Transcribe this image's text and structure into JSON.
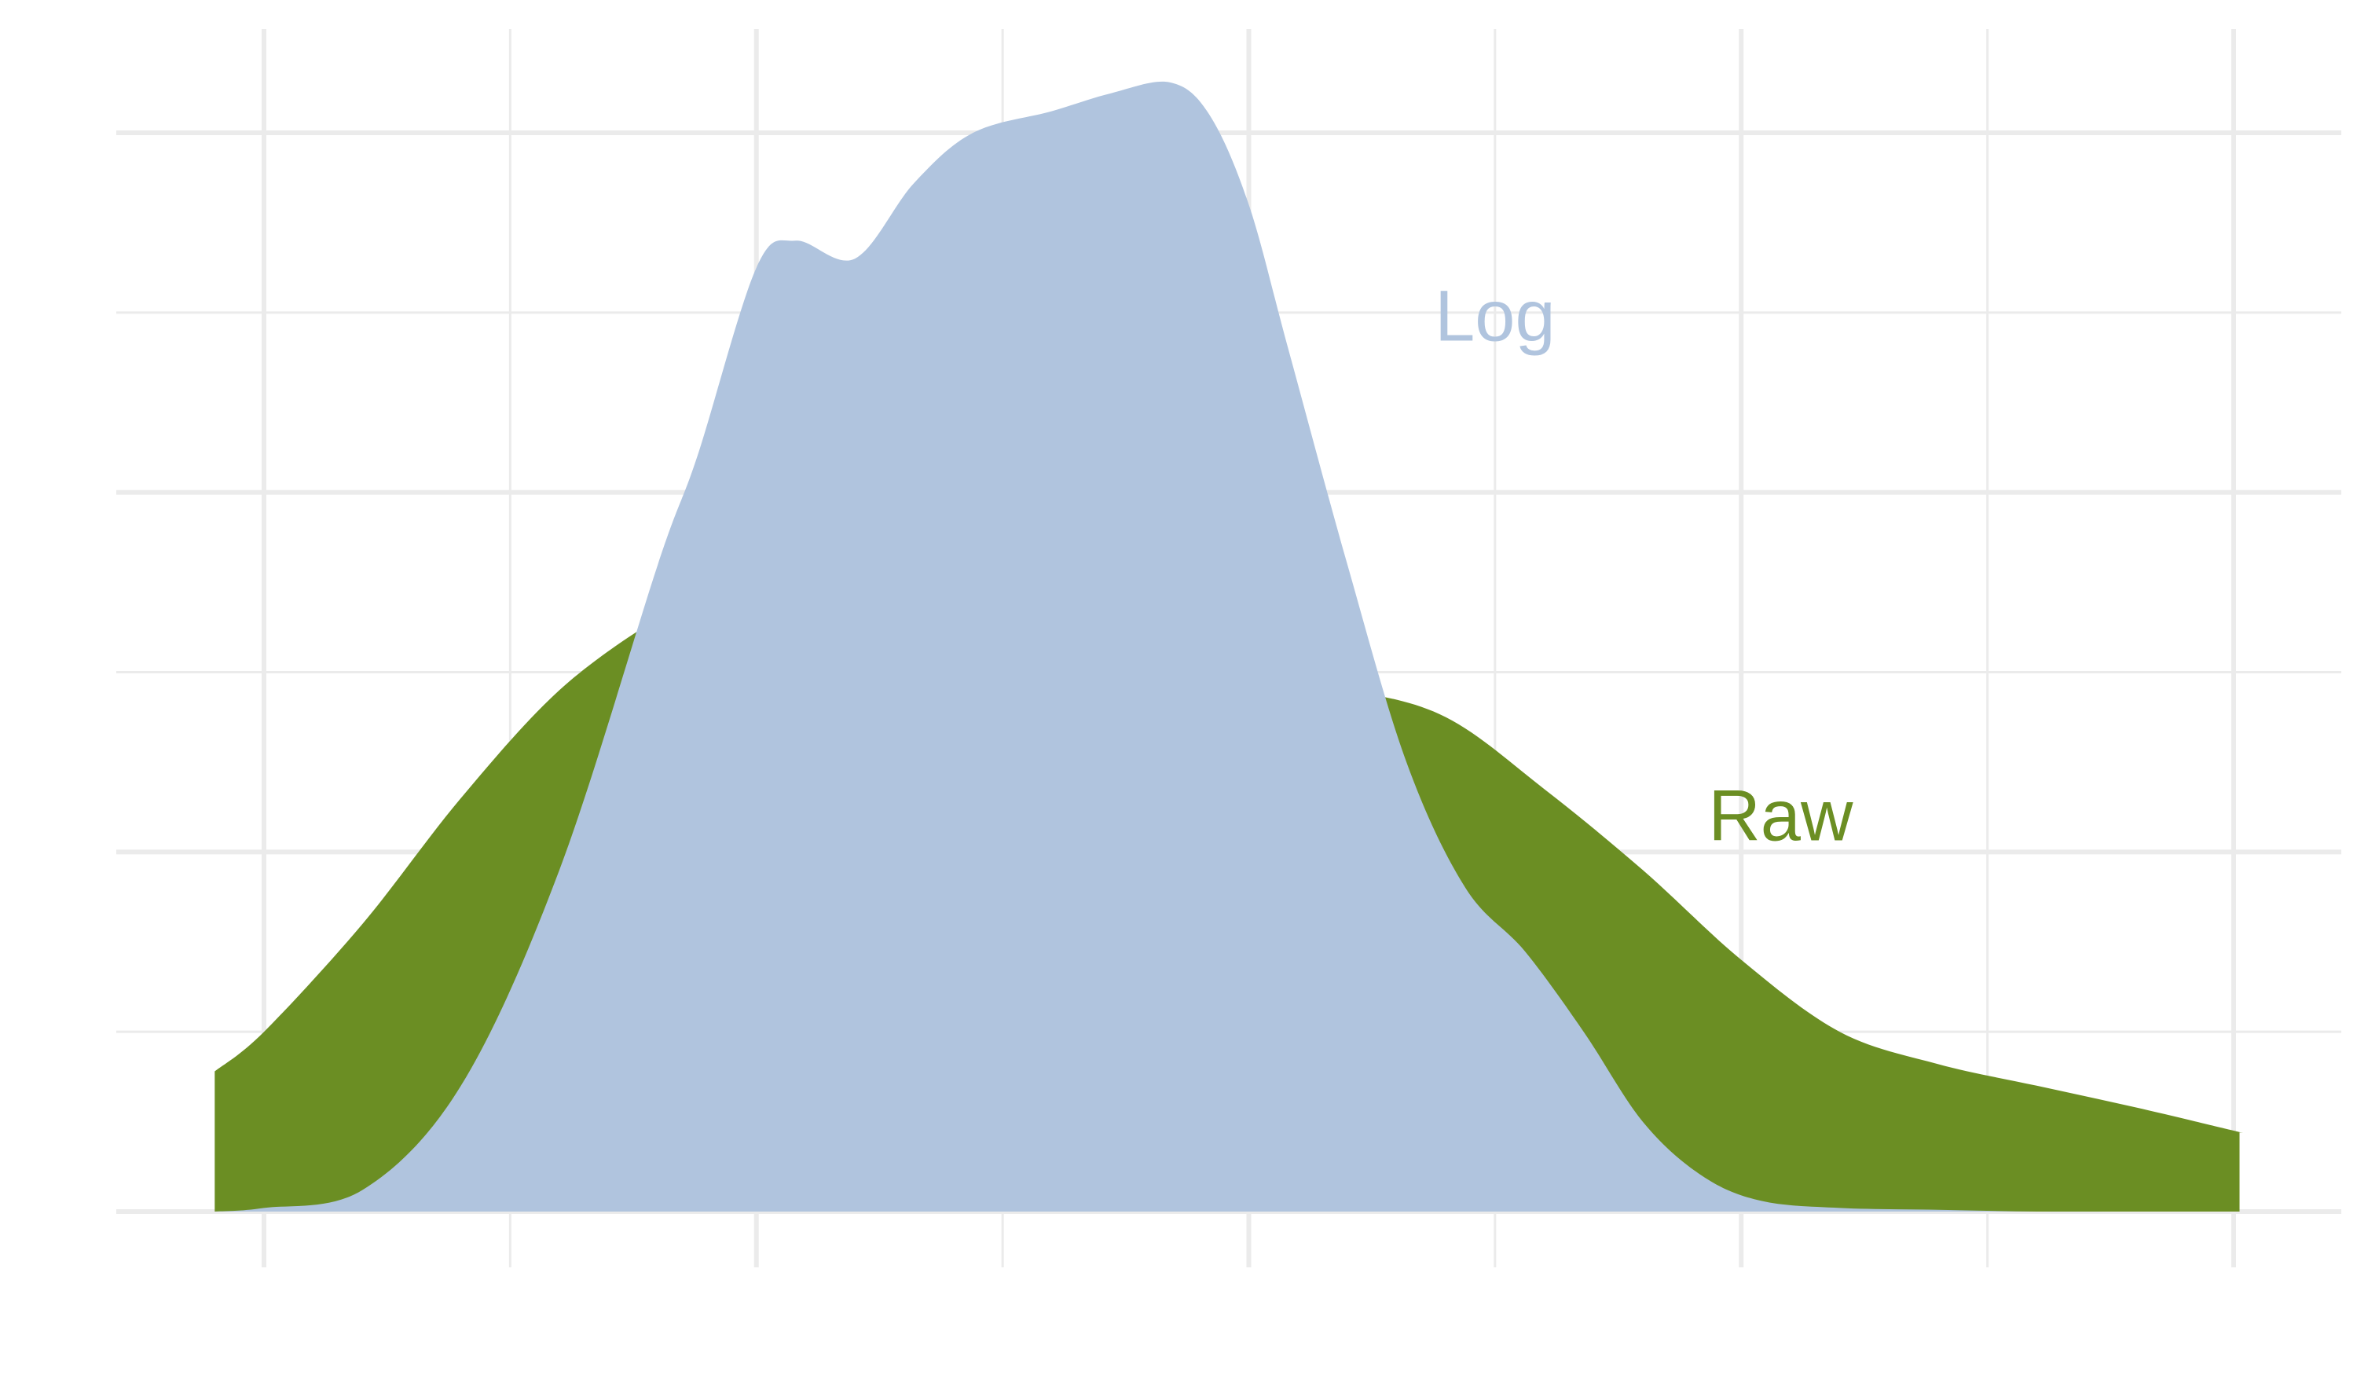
{
  "chart_data": {
    "type": "area",
    "title": "",
    "xlabel": "",
    "ylabel": "",
    "xlim": [
      0,
      1
    ],
    "ylim": [
      0,
      6
    ],
    "grid": true,
    "x_gridlines": [
      0,
      0.125,
      0.25,
      0.375,
      0.5,
      0.625,
      0.75,
      0.875,
      1.0
    ],
    "y_major_gridlines": [
      0,
      2,
      4,
      6
    ],
    "y_minor_gridlines": [
      1,
      3,
      5
    ],
    "legend": "none",
    "series": [
      {
        "name": "Raw",
        "color": "#6b8e23",
        "x": [
          -0.025,
          0.0,
          0.05,
          0.1,
          0.15,
          0.2,
          0.22,
          0.24,
          0.26,
          0.28,
          0.3,
          0.35,
          0.4,
          0.45,
          0.5,
          0.55,
          0.6,
          0.65,
          0.7,
          0.75,
          0.8,
          0.85,
          0.9,
          0.95,
          1.0,
          1.003
        ],
        "y": [
          0.78,
          1.0,
          1.6,
          2.3,
          2.9,
          3.3,
          3.38,
          3.4,
          3.4,
          3.37,
          3.3,
          3.2,
          3.1,
          3.0,
          2.95,
          2.9,
          2.75,
          2.35,
          1.9,
          1.4,
          1.0,
          0.82,
          0.7,
          0.58,
          0.45,
          0.44
        ]
      },
      {
        "name": "Log",
        "color": "#b0c4de",
        "x": [
          -0.025,
          0.0,
          0.05,
          0.1,
          0.15,
          0.2,
          0.22,
          0.25,
          0.27,
          0.3,
          0.33,
          0.36,
          0.4,
          0.43,
          0.46,
          0.48,
          0.5,
          0.52,
          0.55,
          0.58,
          0.61,
          0.64,
          0.67,
          0.7,
          0.73,
          0.76,
          0.8,
          0.85,
          0.9,
          0.95,
          1.0,
          1.003
        ],
        "y": [
          0.0,
          0.02,
          0.12,
          0.7,
          1.9,
          3.6,
          4.2,
          5.25,
          5.4,
          5.3,
          5.72,
          6.0,
          6.12,
          6.22,
          6.28,
          6.1,
          5.6,
          4.8,
          3.6,
          2.5,
          1.8,
          1.45,
          1.0,
          0.5,
          0.2,
          0.06,
          0.02,
          0.01,
          0.0,
          0.0,
          0.0,
          0.0
        ]
      }
    ],
    "annotations": [
      {
        "text": "Log",
        "x": 0.625,
        "y": 4.95,
        "color": "#b0c4de"
      },
      {
        "text": "Raw",
        "x": 0.77,
        "y": 2.17,
        "color": "#6b8e23"
      }
    ]
  }
}
